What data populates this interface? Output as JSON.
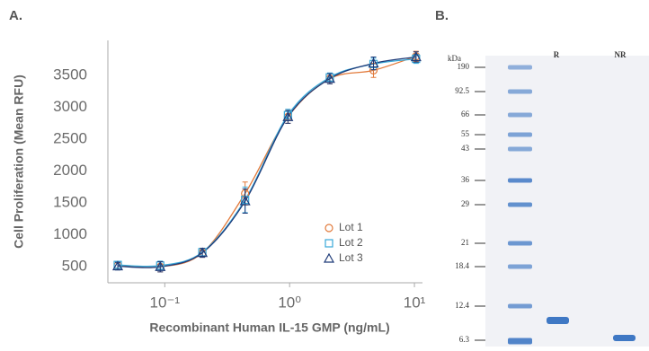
{
  "chart_data": {
    "type": "line",
    "panel_label": "A.",
    "xlabel": "Recombinant Human IL-15 GMP (ng/mL)",
    "ylabel": "Cell Proliferation (Mean RFU)",
    "x": [
      0.042,
      0.092,
      0.2,
      0.44,
      0.97,
      2.1,
      4.7,
      10.3
    ],
    "xscale": "log",
    "xlim": [
      0.035,
      11.6
    ],
    "xticks": [
      {
        "value": 0.1,
        "label": "10⁻¹"
      },
      {
        "value": 1,
        "label": "10⁰"
      },
      {
        "value": 10,
        "label": "10¹"
      }
    ],
    "ylim": [
      250,
      4050
    ],
    "yticks": [
      500,
      1000,
      1500,
      2000,
      2500,
      3000,
      3500
    ],
    "grid": false,
    "legend": "lower right",
    "series": [
      {
        "name": "Lot 1",
        "color": "#e27a3b",
        "marker": "circle",
        "values": [
          520,
          500,
          720,
          1650,
          2850,
          3450,
          3580,
          3800
        ],
        "errors": [
          60,
          80,
          70,
          180,
          100,
          80,
          110,
          80
        ]
      },
      {
        "name": "Lot 2",
        "color": "#38a8d8",
        "marker": "square",
        "values": [
          530,
          520,
          730,
          1550,
          2880,
          3470,
          3680,
          3760
        ],
        "errors": [
          50,
          70,
          60,
          200,
          90,
          70,
          90,
          70
        ]
      },
      {
        "name": "Lot 3",
        "color": "#1e3a78",
        "marker": "triangle",
        "values": [
          510,
          500,
          720,
          1530,
          2850,
          3450,
          3690,
          3790
        ],
        "errors": [
          60,
          80,
          70,
          190,
          100,
          80,
          100,
          80
        ]
      }
    ]
  },
  "gel": {
    "panel_label": "B.",
    "unit": "kDa",
    "lanes": [
      "R",
      "NR"
    ],
    "ladder": [
      "190",
      "92.5",
      "66",
      "55",
      "43",
      "36",
      "29",
      "21",
      "18.4",
      "12.4",
      "6.3"
    ]
  }
}
